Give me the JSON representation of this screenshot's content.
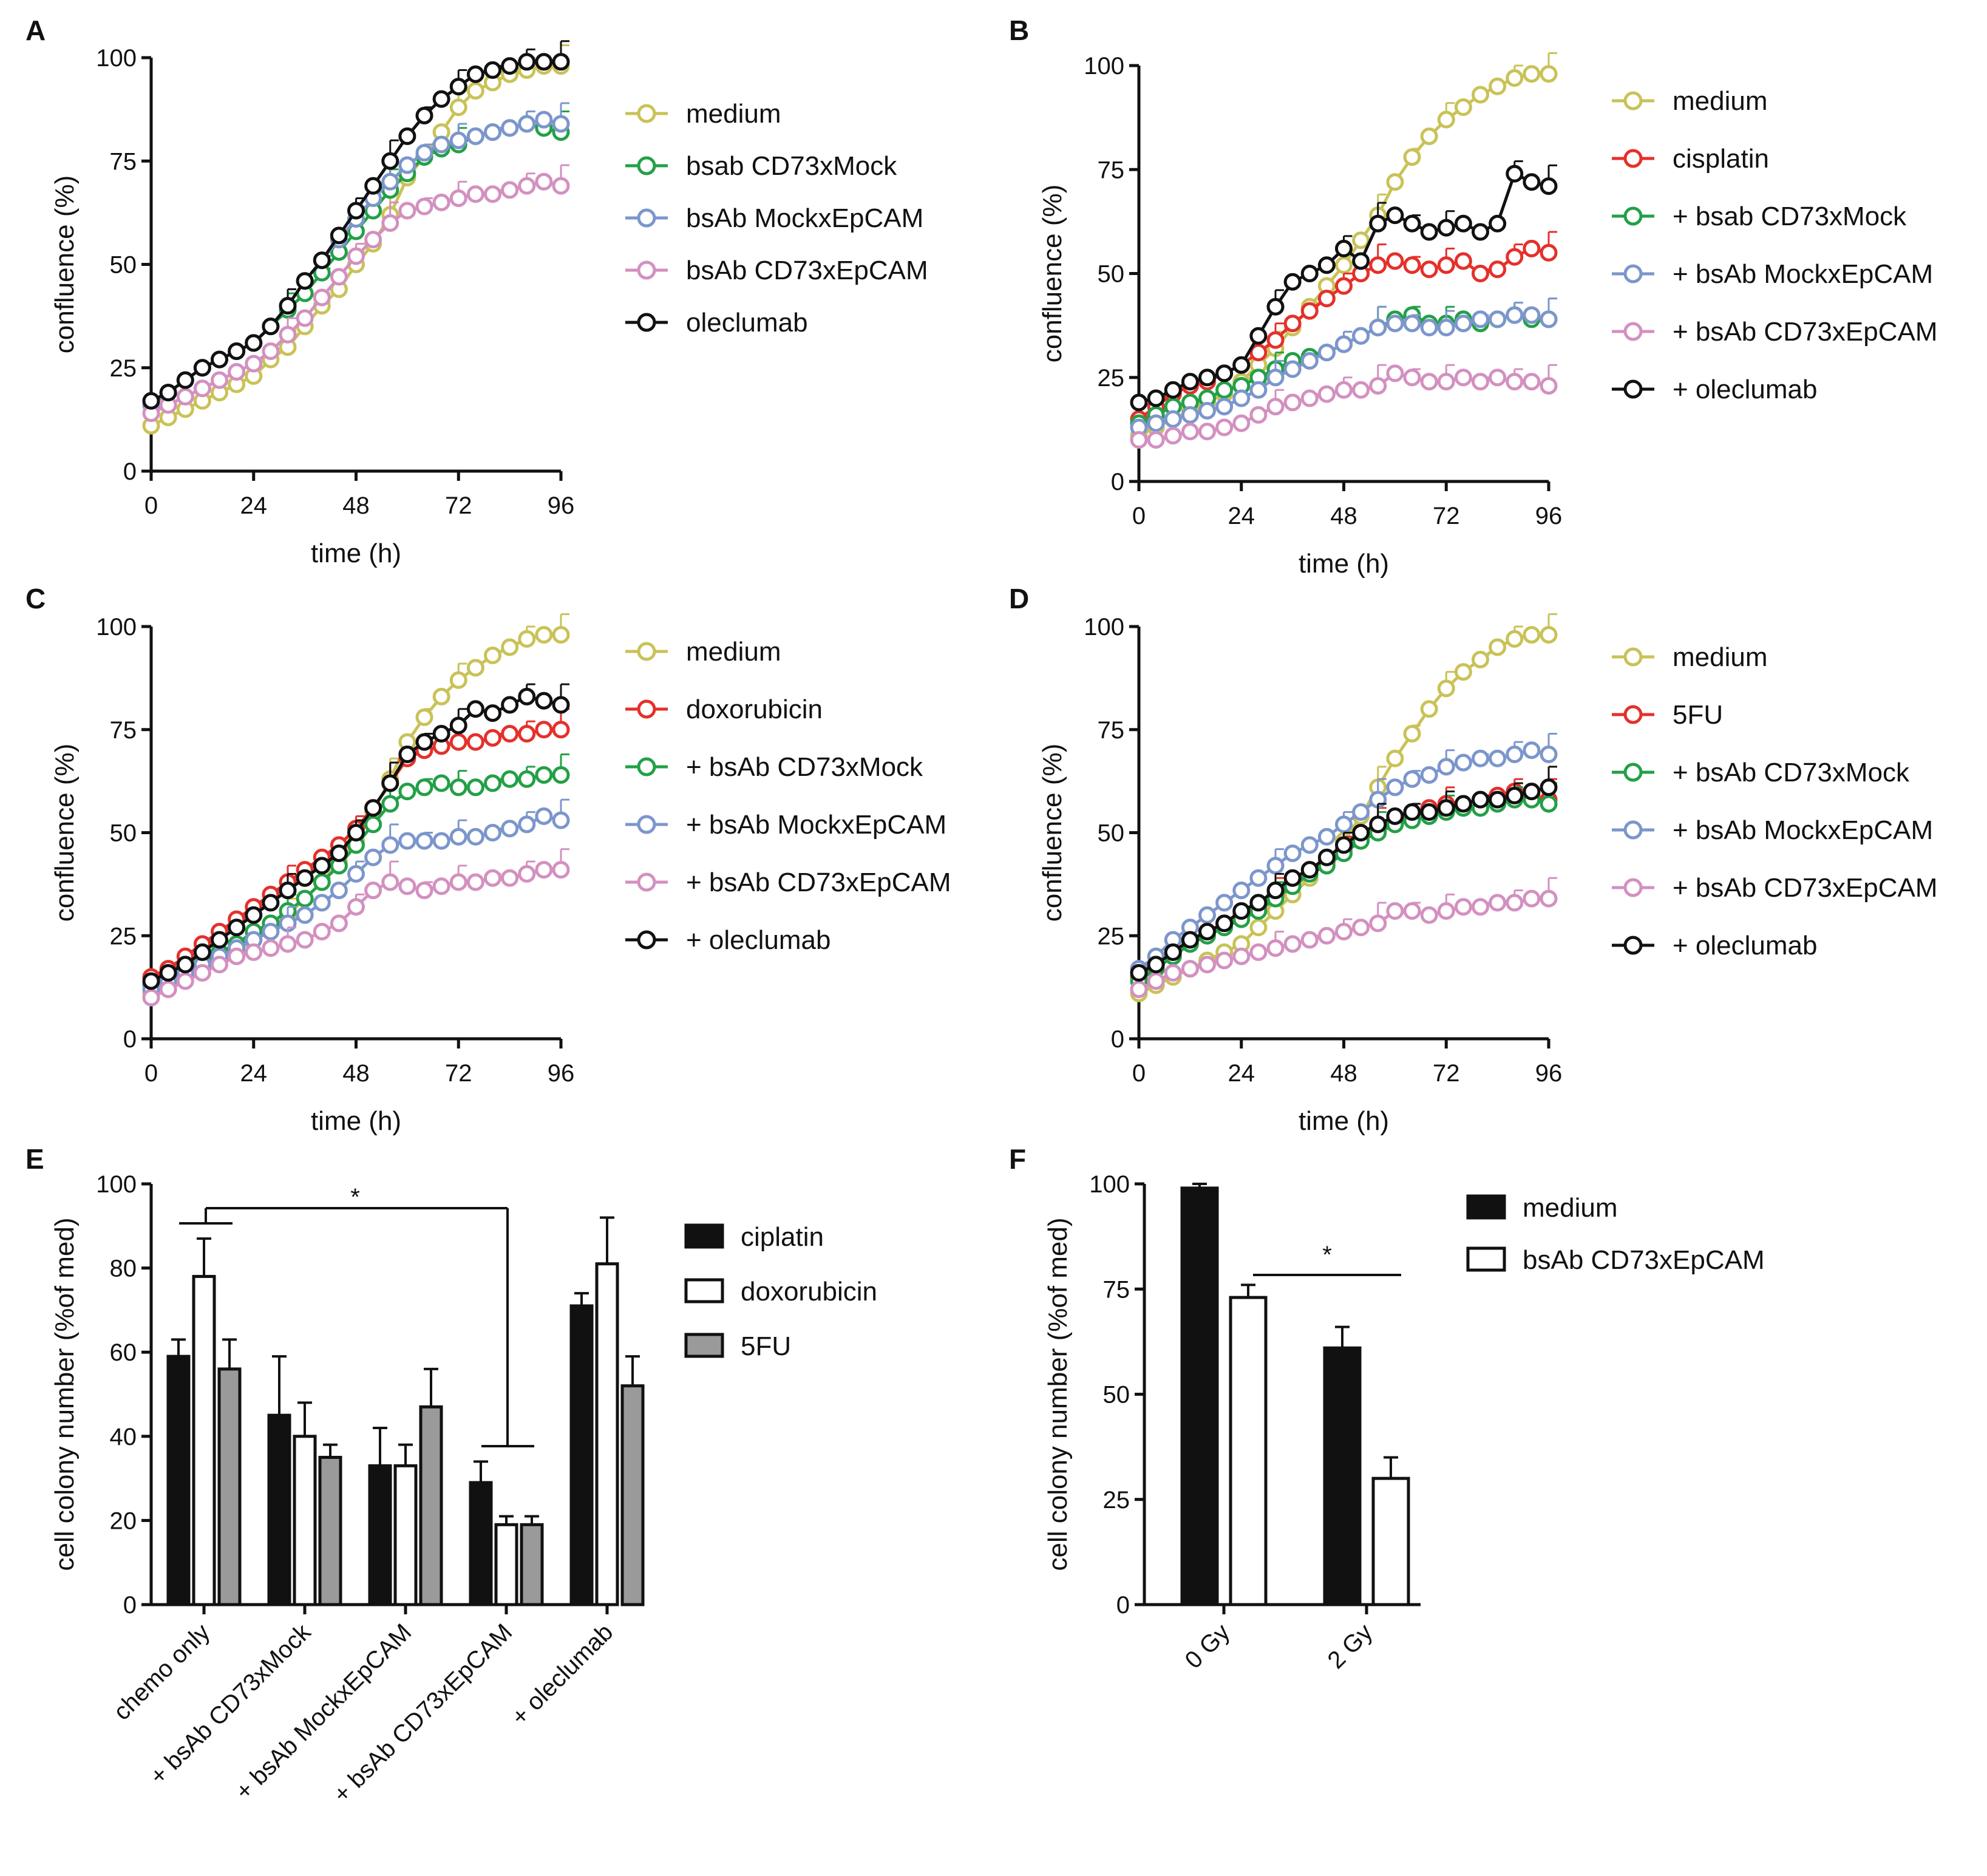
{
  "colors": {
    "medium": "#c9c257",
    "red": "#e5302b",
    "green": "#23a047",
    "blue": "#7c96cc",
    "pink": "#d390c0",
    "black": "#111111",
    "gray": "#9a9a9a"
  },
  "chart_data": [
    {
      "id": "A",
      "letter": "A",
      "type": "line",
      "xlabel": "time (h)",
      "ylabel": "confluence  (%)",
      "xlim": [
        0,
        96
      ],
      "ylim": [
        0,
        100
      ],
      "xticks": [
        "0",
        "24",
        "48",
        "72",
        "96"
      ],
      "yticks": [
        "0",
        "25",
        "50",
        "75",
        "100"
      ],
      "x": [
        0,
        4,
        8,
        12,
        16,
        20,
        24,
        28,
        32,
        36,
        40,
        44,
        48,
        52,
        56,
        60,
        64,
        68,
        72,
        76,
        80,
        84,
        88,
        92,
        96
      ],
      "series": [
        {
          "name": "medium",
          "color_key": "medium",
          "values": [
            11,
            13,
            15,
            17,
            19,
            21,
            23,
            27,
            30,
            35,
            40,
            44,
            50,
            55,
            62,
            71,
            76,
            82,
            88,
            92,
            94,
            96,
            97,
            98,
            98
          ]
        },
        {
          "name": "bsab CD73xMock",
          "color_key": "green",
          "values": [
            16,
            19,
            22,
            25,
            27,
            29,
            31,
            35,
            39,
            43,
            48,
            53,
            58,
            63,
            68,
            72,
            76,
            78,
            79,
            81,
            82,
            83,
            84,
            83,
            82
          ]
        },
        {
          "name": "bsAb MockxEpCAM",
          "color_key": "blue",
          "values": [
            16,
            19,
            22,
            25,
            27,
            29,
            31,
            35,
            40,
            46,
            51,
            56,
            61,
            66,
            70,
            74,
            77,
            79,
            80,
            81,
            82,
            83,
            84,
            85,
            84
          ]
        },
        {
          "name": "bsAb CD73xEpCAM",
          "color_key": "pink",
          "values": [
            14,
            16,
            18,
            20,
            22,
            24,
            26,
            29,
            33,
            37,
            42,
            47,
            52,
            56,
            60,
            63,
            64,
            65,
            66,
            67,
            67,
            68,
            69,
            70,
            69
          ]
        },
        {
          "name": "oleclumab",
          "color_key": "black",
          "values": [
            17,
            19,
            22,
            25,
            27,
            29,
            31,
            35,
            40,
            46,
            51,
            57,
            63,
            69,
            75,
            81,
            86,
            90,
            93,
            96,
            97,
            98,
            99,
            99,
            99
          ]
        }
      ]
    },
    {
      "id": "B",
      "letter": "B",
      "type": "line",
      "xlabel": "time (h)",
      "ylabel": "confluence  (%)",
      "xlim": [
        0,
        96
      ],
      "ylim": [
        0,
        100
      ],
      "xticks": [
        "0",
        "24",
        "48",
        "72",
        "96"
      ],
      "yticks": [
        "0",
        "25",
        "50",
        "75",
        "100"
      ],
      "x": [
        0,
        4,
        8,
        12,
        16,
        20,
        24,
        28,
        32,
        36,
        40,
        44,
        48,
        52,
        56,
        60,
        64,
        68,
        72,
        76,
        80,
        84,
        88,
        92,
        96
      ],
      "series": [
        {
          "name": "medium",
          "color_key": "medium",
          "values": [
            11,
            13,
            15,
            17,
            19,
            21,
            24,
            28,
            32,
            37,
            42,
            47,
            52,
            58,
            64,
            72,
            78,
            83,
            87,
            90,
            93,
            95,
            97,
            98,
            98
          ]
        },
        {
          "name": "cisplatin",
          "color_key": "red",
          "values": [
            15,
            18,
            21,
            23,
            24,
            26,
            28,
            31,
            34,
            38,
            41,
            44,
            47,
            50,
            52,
            53,
            52,
            51,
            52,
            53,
            50,
            51,
            54,
            56,
            55
          ]
        },
        {
          "name": "+ bsab CD73xMock",
          "color_key": "green",
          "values": [
            14,
            16,
            18,
            19,
            20,
            22,
            23,
            25,
            27,
            29,
            30,
            31,
            33,
            35,
            37,
            39,
            40,
            38,
            38,
            39,
            38,
            39,
            40,
            39,
            39
          ]
        },
        {
          "name": "+ bsAb MockxEpCAM",
          "color_key": "blue",
          "values": [
            13,
            14,
            15,
            16,
            17,
            18,
            20,
            22,
            25,
            27,
            29,
            31,
            33,
            35,
            37,
            38,
            38,
            37,
            37,
            38,
            39,
            39,
            40,
            40,
            39
          ]
        },
        {
          "name": "+ bsAb CD73xEpCAM",
          "color_key": "pink",
          "values": [
            10,
            10,
            11,
            12,
            12,
            13,
            14,
            16,
            18,
            19,
            20,
            21,
            22,
            22,
            23,
            26,
            25,
            24,
            24,
            25,
            24,
            25,
            24,
            24,
            23
          ]
        },
        {
          "name": "+ oleclumab",
          "color_key": "black",
          "values": [
            19,
            20,
            22,
            24,
            25,
            26,
            28,
            35,
            42,
            48,
            50,
            52,
            56,
            53,
            62,
            64,
            62,
            60,
            61,
            62,
            60,
            62,
            74,
            72,
            71
          ]
        }
      ]
    },
    {
      "id": "C",
      "letter": "C",
      "type": "line",
      "xlabel": "time (h)",
      "ylabel": "confluence  (%)",
      "xlim": [
        0,
        96
      ],
      "ylim": [
        0,
        100
      ],
      "xticks": [
        "0",
        "24",
        "48",
        "72",
        "96"
      ],
      "yticks": [
        "0",
        "25",
        "50",
        "75",
        "100"
      ],
      "x": [
        0,
        4,
        8,
        12,
        16,
        20,
        24,
        28,
        32,
        36,
        40,
        44,
        48,
        52,
        56,
        60,
        64,
        68,
        72,
        76,
        80,
        84,
        88,
        92,
        96
      ],
      "series": [
        {
          "name": "medium",
          "color_key": "medium",
          "values": [
            11,
            13,
            15,
            17,
            19,
            21,
            24,
            27,
            30,
            34,
            38,
            43,
            48,
            55,
            63,
            72,
            78,
            83,
            87,
            90,
            93,
            95,
            97,
            98,
            98
          ]
        },
        {
          "name": "doxorubicin",
          "color_key": "red",
          "values": [
            15,
            17,
            20,
            23,
            26,
            29,
            32,
            35,
            38,
            41,
            44,
            47,
            51,
            56,
            62,
            68,
            70,
            71,
            72,
            72,
            73,
            74,
            74,
            75,
            75
          ]
        },
        {
          "name": "+ bsAb CD73xMock",
          "color_key": "green",
          "values": [
            13,
            15,
            17,
            19,
            21,
            23,
            26,
            28,
            31,
            34,
            38,
            42,
            47,
            52,
            57,
            60,
            61,
            62,
            61,
            61,
            62,
            63,
            63,
            64,
            64
          ]
        },
        {
          "name": "+ bsAb MockxEpCAM",
          "color_key": "blue",
          "values": [
            12,
            14,
            16,
            18,
            20,
            22,
            24,
            26,
            28,
            30,
            33,
            36,
            40,
            44,
            47,
            48,
            48,
            48,
            49,
            49,
            50,
            51,
            52,
            54,
            53
          ]
        },
        {
          "name": "+ bsAb CD73xEpCAM",
          "color_key": "pink",
          "values": [
            10,
            12,
            14,
            16,
            18,
            20,
            21,
            22,
            23,
            24,
            26,
            28,
            32,
            36,
            38,
            37,
            36,
            37,
            38,
            38,
            39,
            39,
            40,
            41,
            41
          ]
        },
        {
          "name": "+ oleclumab",
          "color_key": "black",
          "values": [
            14,
            16,
            18,
            21,
            24,
            27,
            30,
            33,
            36,
            39,
            42,
            45,
            50,
            56,
            62,
            69,
            72,
            74,
            76,
            80,
            79,
            81,
            83,
            82,
            81
          ]
        }
      ]
    },
    {
      "id": "D",
      "letter": "D",
      "type": "line",
      "xlabel": "time (h)",
      "ylabel": "confluence  (%)",
      "xlim": [
        0,
        96
      ],
      "ylim": [
        0,
        100
      ],
      "xticks": [
        "0",
        "24",
        "48",
        "72",
        "96"
      ],
      "yticks": [
        "0",
        "25",
        "50",
        "75",
        "100"
      ],
      "x": [
        0,
        4,
        8,
        12,
        16,
        20,
        24,
        28,
        32,
        36,
        40,
        44,
        48,
        52,
        56,
        60,
        64,
        68,
        72,
        76,
        80,
        84,
        88,
        92,
        96
      ],
      "series": [
        {
          "name": "medium",
          "color_key": "medium",
          "values": [
            11,
            13,
            15,
            17,
            19,
            21,
            23,
            27,
            31,
            35,
            39,
            43,
            48,
            54,
            61,
            68,
            74,
            80,
            85,
            89,
            92,
            95,
            97,
            98,
            98
          ]
        },
        {
          "name": "5FU",
          "color_key": "red",
          "values": [
            15,
            18,
            21,
            24,
            26,
            28,
            30,
            32,
            35,
            38,
            41,
            43,
            46,
            49,
            51,
            53,
            55,
            56,
            57,
            57,
            58,
            59,
            60,
            59,
            58
          ]
        },
        {
          "name": "+ bsAb CD73xMock",
          "color_key": "green",
          "values": [
            14,
            17,
            20,
            23,
            25,
            27,
            29,
            31,
            34,
            37,
            40,
            42,
            45,
            48,
            50,
            52,
            53,
            54,
            55,
            56,
            56,
            57,
            58,
            58,
            57
          ]
        },
        {
          "name": "+ bsAb MockxEpCAM",
          "color_key": "blue",
          "values": [
            17,
            20,
            24,
            27,
            30,
            33,
            36,
            39,
            42,
            45,
            47,
            49,
            52,
            55,
            58,
            61,
            63,
            64,
            66,
            67,
            68,
            68,
            69,
            70,
            69
          ]
        },
        {
          "name": "+ bsAb CD73xEpCAM",
          "color_key": "pink",
          "values": [
            12,
            14,
            16,
            17,
            18,
            19,
            20,
            21,
            22,
            23,
            24,
            25,
            26,
            27,
            28,
            31,
            31,
            30,
            31,
            32,
            32,
            33,
            33,
            34,
            34
          ]
        },
        {
          "name": "+ oleclumab",
          "color_key": "black",
          "values": [
            16,
            18,
            21,
            24,
            26,
            28,
            31,
            33,
            36,
            39,
            41,
            44,
            47,
            50,
            52,
            54,
            55,
            55,
            56,
            57,
            58,
            58,
            59,
            60,
            61
          ]
        }
      ]
    },
    {
      "id": "E",
      "letter": "E",
      "type": "bar",
      "ylabel": "cell colony number  (%of med)",
      "ylim": [
        0,
        100
      ],
      "yticks": [
        "0",
        "20",
        "40",
        "60",
        "80",
        "100"
      ],
      "categories": [
        "chemo only",
        "+ bsAb CD73xMock",
        "+ bsAb MockxEpCAM",
        "+ bsAb CD73xEpCAM",
        "+ oleclumab"
      ],
      "series": [
        {
          "name": "ciplatin",
          "fill_key": "black",
          "values": [
            59,
            45,
            33,
            29,
            71
          ],
          "errors": [
            4,
            14,
            9,
            5,
            3
          ]
        },
        {
          "name": "doxorubicin",
          "fill_key": "white",
          "values": [
            78,
            40,
            33,
            19,
            81
          ],
          "errors": [
            9,
            8,
            5,
            2,
            11
          ]
        },
        {
          "name": "5FU",
          "fill_key": "gray",
          "values": [
            56,
            35,
            47,
            19,
            52
          ],
          "errors": [
            7,
            3,
            9,
            2,
            7
          ]
        }
      ],
      "annotation": "*"
    },
    {
      "id": "F",
      "letter": "F",
      "type": "bar",
      "ylabel": "cell colony number  (%of med)",
      "ylim": [
        0,
        100
      ],
      "yticks": [
        "0",
        "25",
        "50",
        "75",
        "100"
      ],
      "categories": [
        "0 Gy",
        "2 Gy"
      ],
      "series": [
        {
          "name": "medium",
          "fill_key": "black",
          "values": [
            99,
            61
          ],
          "errors": [
            1,
            5
          ]
        },
        {
          "name": "bsAb CD73xEpCAM",
          "fill_key": "white",
          "values": [
            73,
            30
          ],
          "errors": [
            3,
            5
          ]
        }
      ],
      "annotation": "*"
    }
  ]
}
